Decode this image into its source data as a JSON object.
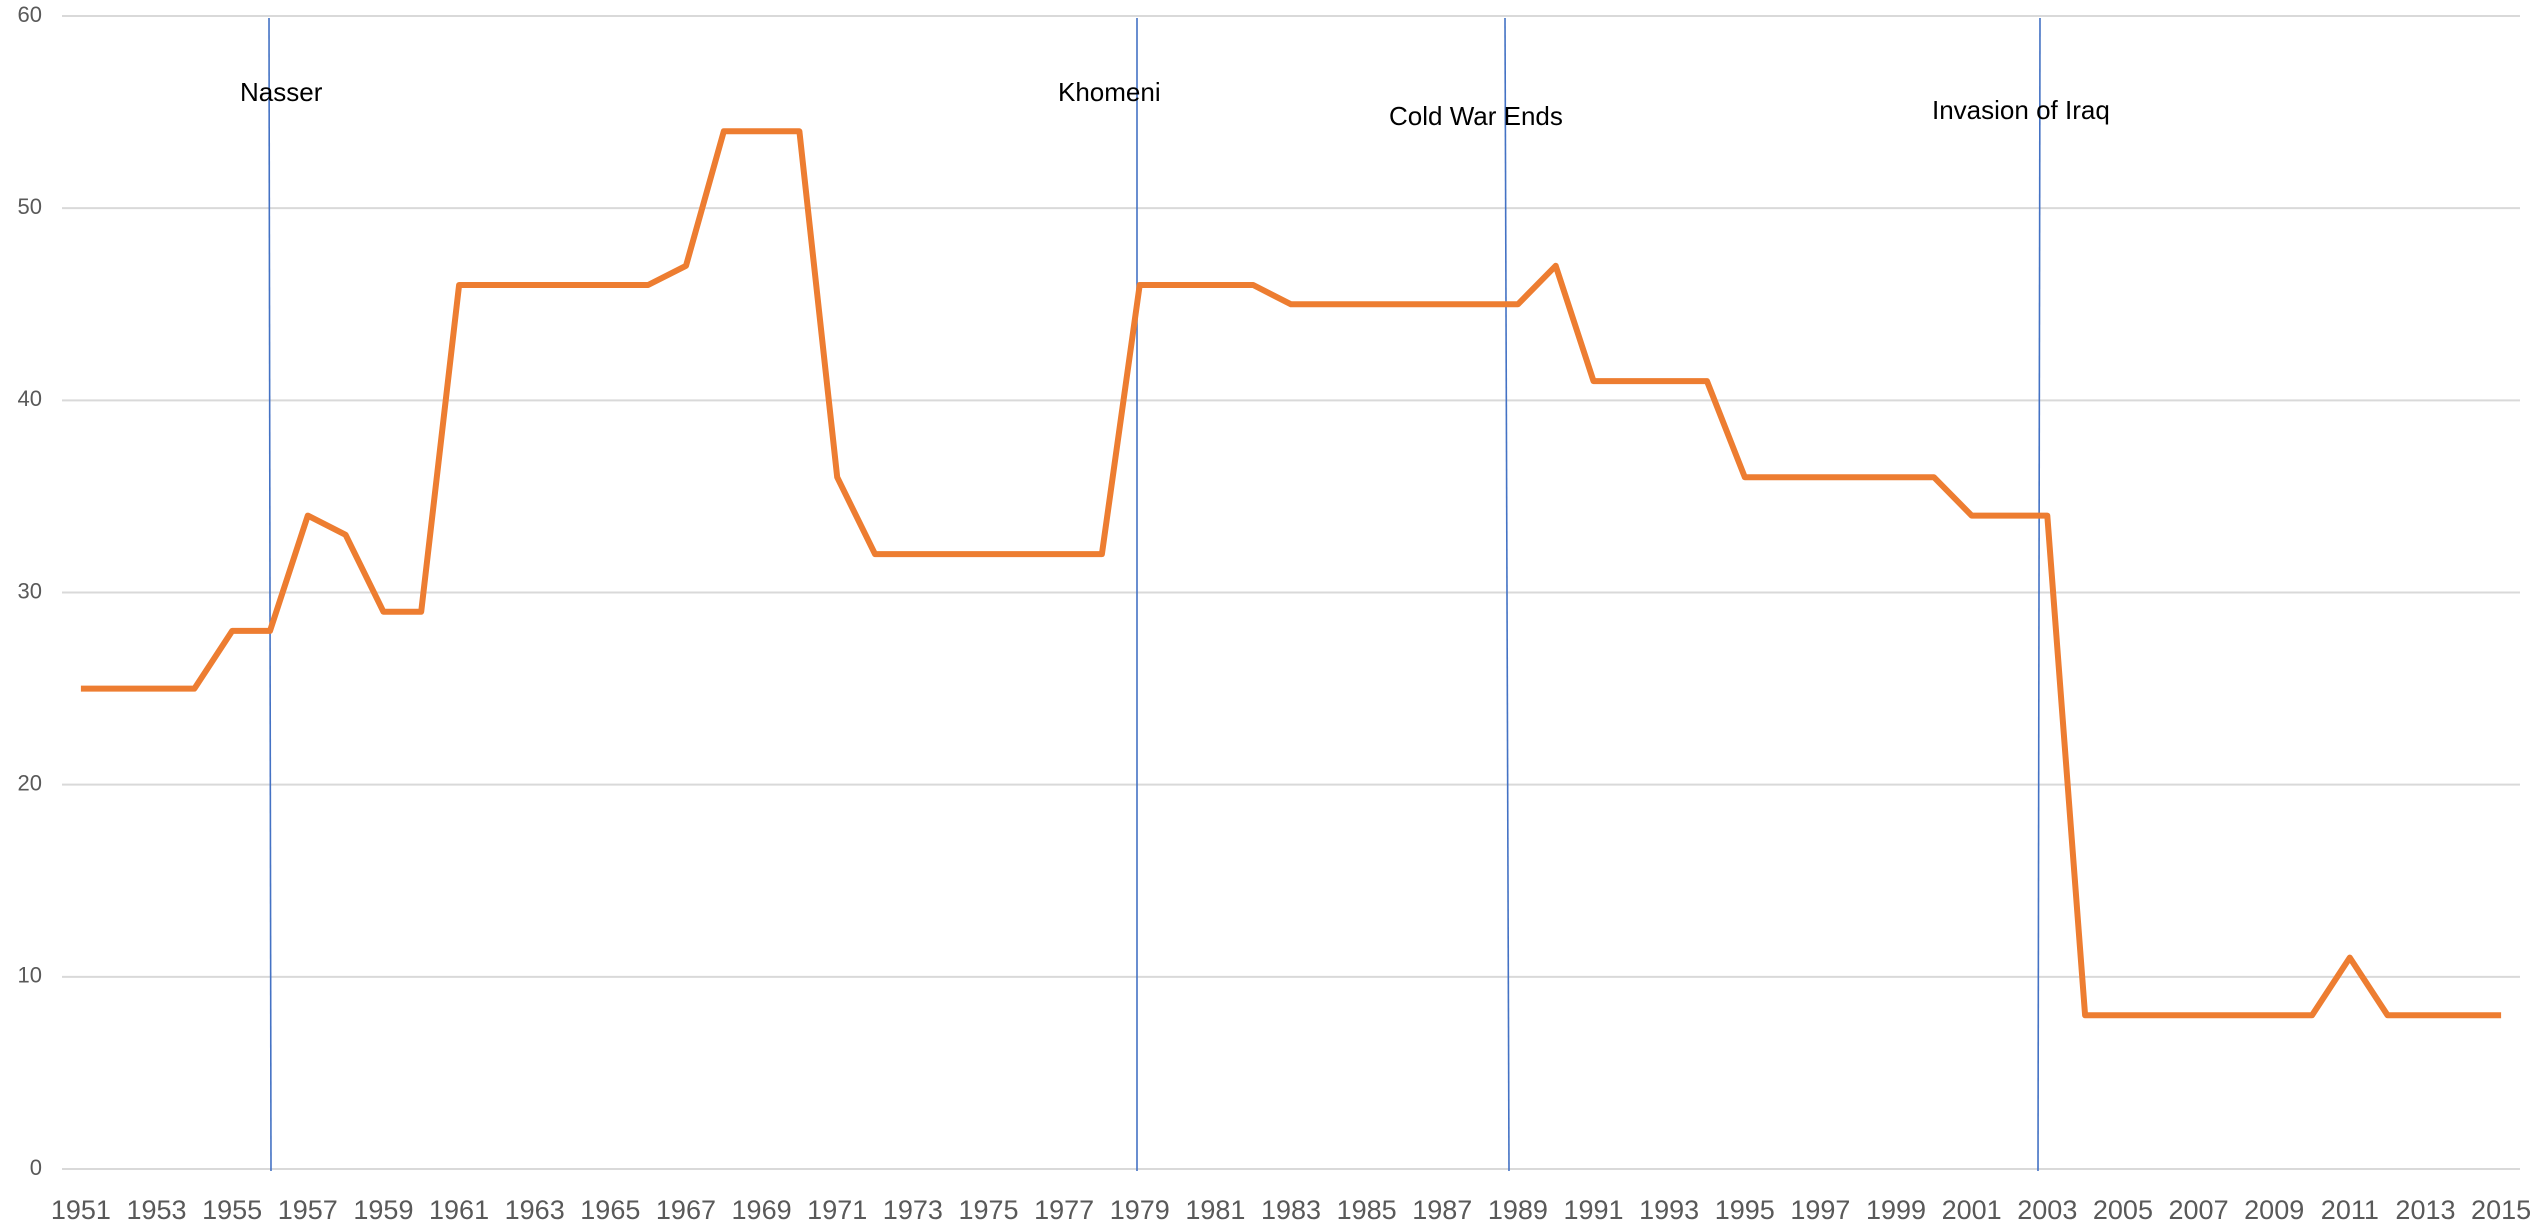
{
  "chart_data": {
    "type": "line",
    "categories": [
      "1951",
      null,
      "1953",
      null,
      "1955",
      null,
      "1957",
      null,
      "1959",
      null,
      "1961",
      null,
      "1963",
      null,
      "1965",
      null,
      "1967",
      null,
      "1969",
      null,
      "1971",
      null,
      "1973",
      null,
      "1975",
      null,
      "1977",
      null,
      "1979",
      null,
      "1981",
      null,
      "1983",
      null,
      "1985",
      null,
      "1987",
      null,
      "1989",
      null,
      "1991",
      null,
      "1993",
      null,
      "1995",
      null,
      "1997",
      null,
      "1999",
      null,
      "2001",
      null,
      "2003",
      null,
      "2005",
      null,
      "2007",
      null,
      "2009",
      null,
      "2011",
      null,
      "2013",
      null,
      "2015"
    ],
    "series": [
      {
        "color": "#ed7d31",
        "values": [
          25,
          25,
          25,
          25,
          28,
          28,
          34,
          33,
          29,
          29,
          46,
          46,
          46,
          46,
          46,
          46,
          47,
          54,
          54,
          54,
          36,
          32,
          32,
          32,
          32,
          32,
          32,
          32,
          46,
          46,
          46,
          46,
          45,
          45,
          45,
          45,
          45,
          45,
          45,
          47,
          41,
          41,
          41,
          41,
          36,
          36,
          36,
          36,
          36,
          36,
          34,
          34,
          34,
          8,
          8,
          8,
          8,
          8,
          8,
          8,
          11,
          8,
          8,
          8,
          8
        ]
      }
    ],
    "ylim": [
      0,
      60
    ],
    "yticks": [
      0,
      10,
      20,
      30,
      40,
      50,
      60
    ],
    "grid": true,
    "annotations": [
      "Nasser",
      "Khomeni",
      "Cold War Ends",
      "Invasion of Iraq"
    ]
  }
}
